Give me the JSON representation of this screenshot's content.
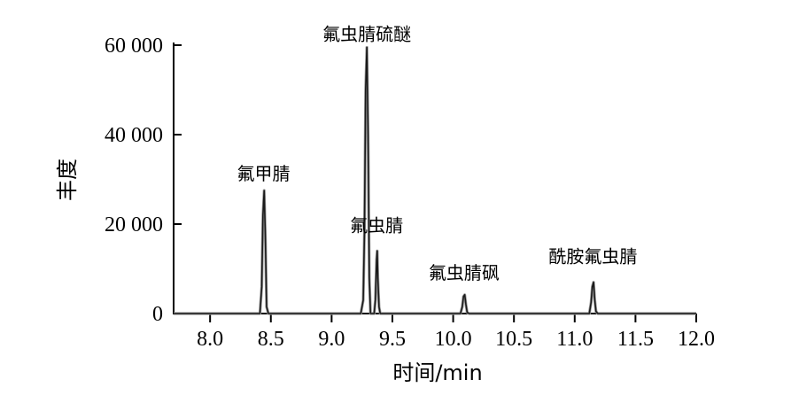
{
  "chart_data": {
    "type": "line",
    "xlabel": "时间/min",
    "ylabel": "丰度",
    "xlim": [
      7.7,
      12.0
    ],
    "ylim": [
      0,
      60000
    ],
    "x_ticks": [
      8.0,
      8.5,
      9.0,
      9.5,
      10.0,
      10.5,
      11.0,
      11.5,
      12.0
    ],
    "x_tick_labels": [
      "8.0",
      "8.5",
      "9.0",
      "9.5",
      "10.0",
      "10.5",
      "11.0",
      "11.5",
      "12.0"
    ],
    "y_ticks": [
      0,
      20000,
      40000,
      60000
    ],
    "y_tick_labels": [
      "0",
      "20 000",
      "40 000",
      "60 000"
    ],
    "grid": false,
    "series": [
      {
        "x": [
          7.7,
          8.41,
          8.425,
          8.435,
          8.445,
          8.455,
          8.465,
          8.48,
          9.24,
          9.26,
          9.27,
          9.28,
          9.29,
          9.3,
          9.31,
          9.32,
          9.35,
          9.36,
          9.37,
          9.375,
          9.38,
          9.39,
          9.4,
          10.06,
          10.075,
          10.085,
          10.095,
          10.105,
          10.115,
          10.13,
          11.12,
          11.135,
          11.145,
          11.155,
          11.165,
          11.175,
          11.19,
          12.0
        ],
        "y": [
          0,
          0,
          6000,
          22000,
          27500,
          17000,
          1500,
          0,
          0,
          3000,
          18000,
          50000,
          59500,
          40000,
          8000,
          0,
          0,
          3000,
          12000,
          14000,
          8000,
          1500,
          0,
          0,
          1500,
          3800,
          4200,
          2000,
          300,
          0,
          0,
          2500,
          6000,
          7000,
          3000,
          500,
          0,
          0
        ]
      }
    ],
    "annotations": [
      {
        "text": "氟甲腈",
        "x": 8.44,
        "y": 27500
      },
      {
        "text": "氟虫腈硫醚",
        "x": 9.29,
        "y": 59500
      },
      {
        "text": "氟虫腈",
        "x": 9.37,
        "y": 14000
      },
      {
        "text": "氟虫腈砜",
        "x": 10.09,
        "y": 4200
      },
      {
        "text": "酰胺氟虫腈",
        "x": 11.15,
        "y": 7000
      }
    ]
  }
}
